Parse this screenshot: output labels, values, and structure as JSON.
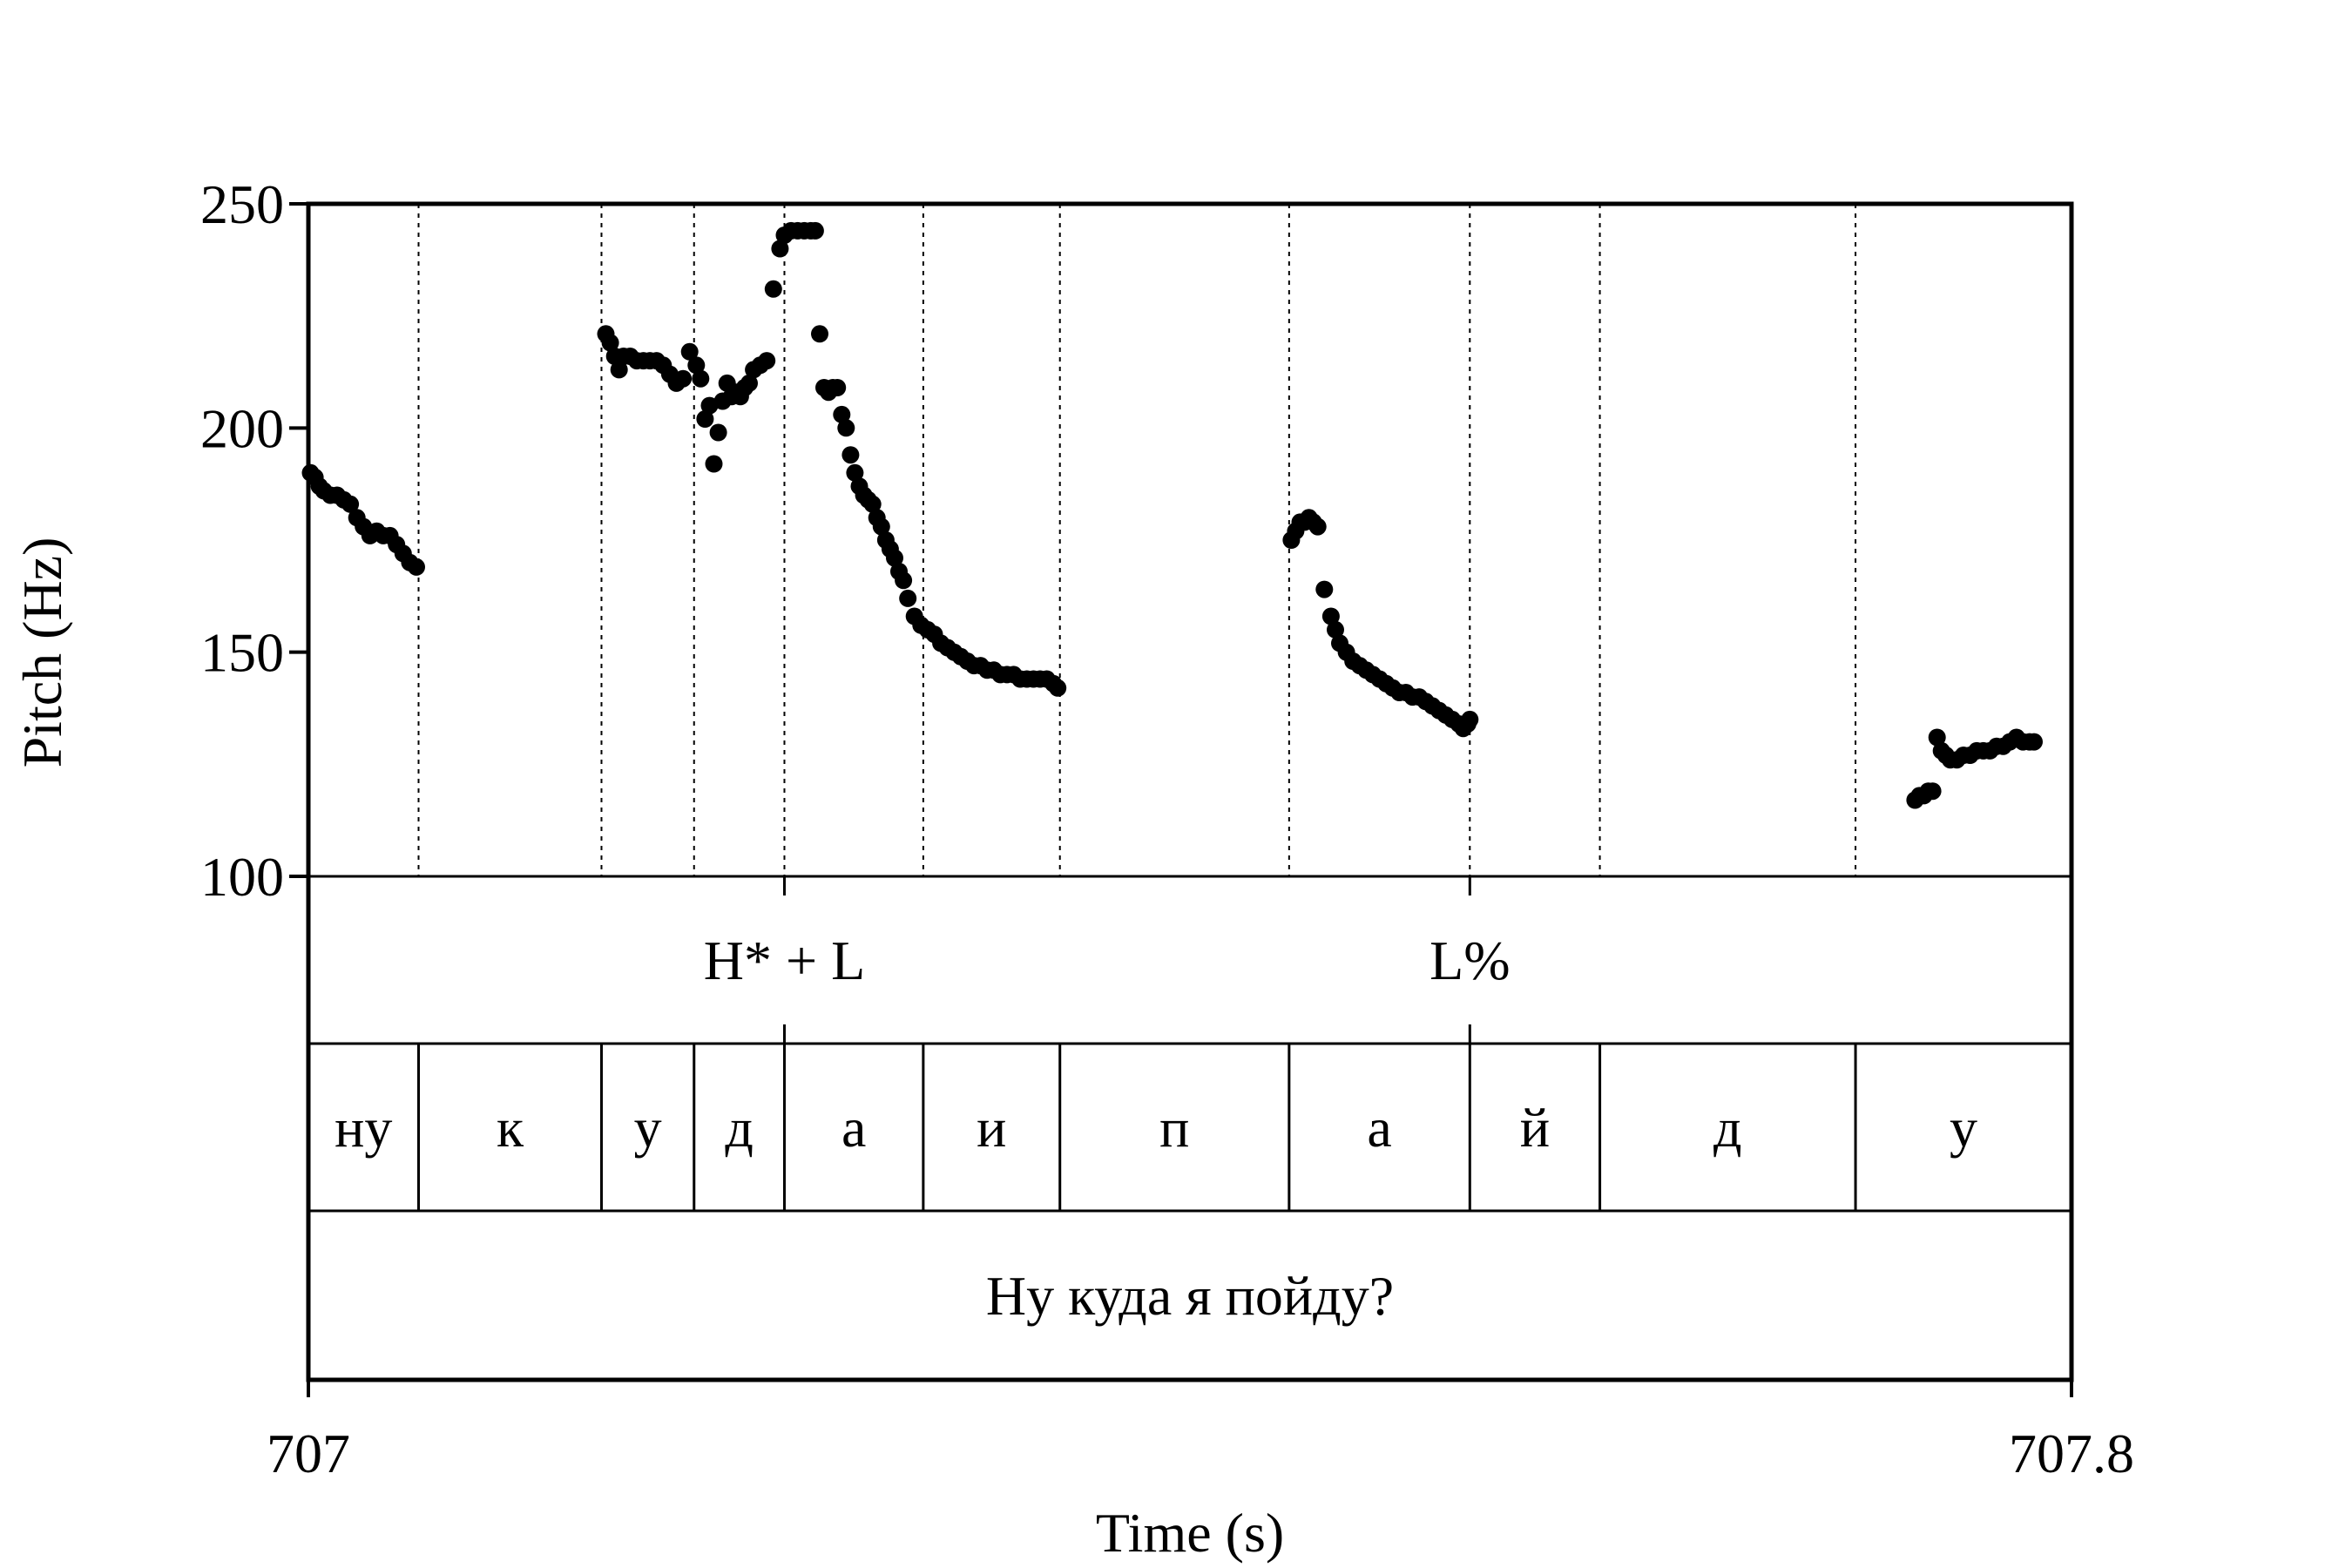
{
  "chart_data": {
    "type": "scatter",
    "title": "",
    "xlabel": "Time (s)",
    "ylabel": "Pitch (Hz)",
    "xlim": [
      707,
      707.8
    ],
    "ylim": [
      100,
      250
    ],
    "x_ticks": [
      "707",
      "707.8"
    ],
    "y_ticks": [
      "100",
      "150",
      "200",
      "250"
    ],
    "grid": false,
    "legend": "none",
    "point_color": "#000000",
    "boundaries": [
      707.05,
      707.133,
      707.175,
      707.216,
      707.279,
      707.341,
      707.445,
      707.527,
      707.586,
      707.702
    ],
    "tones": [
      {
        "label": "H* + L",
        "time": 707.216
      },
      {
        "label": "L%",
        "time": 707.527
      }
    ],
    "segments": [
      {
        "label": "ну",
        "start": 707.0,
        "end": 707.05
      },
      {
        "label": "к",
        "start": 707.05,
        "end": 707.133
      },
      {
        "label": "у",
        "start": 707.133,
        "end": 707.175
      },
      {
        "label": "д",
        "start": 707.175,
        "end": 707.216
      },
      {
        "label": "а",
        "start": 707.216,
        "end": 707.279
      },
      {
        "label": "и",
        "start": 707.279,
        "end": 707.341
      },
      {
        "label": "п",
        "start": 707.341,
        "end": 707.445
      },
      {
        "label": "а",
        "start": 707.445,
        "end": 707.527
      },
      {
        "label": "й",
        "start": 707.527,
        "end": 707.586
      },
      {
        "label": "д",
        "start": 707.586,
        "end": 707.702
      },
      {
        "label": "у",
        "start": 707.702,
        "end": 707.8
      }
    ],
    "sentence": "Ну куда я пойду?",
    "series": [
      {
        "x": [
          707.001,
          707.003,
          707.005,
          707.007,
          707.01,
          707.013,
          707.016,
          707.019,
          707.022,
          707.025,
          707.028,
          707.031,
          707.034,
          707.037,
          707.04,
          707.043,
          707.046,
          707.049
        ],
        "y": [
          190,
          189,
          187,
          186,
          185,
          185,
          184,
          183,
          180,
          178,
          176,
          177,
          176,
          176,
          174,
          172,
          170,
          169
        ]
      },
      {
        "x": [
          707.135,
          707.137,
          707.139,
          707.141,
          707.143,
          707.146,
          707.149,
          707.152,
          707.155,
          707.158,
          707.161,
          707.164,
          707.167,
          707.17,
          707.173,
          707.176,
          707.178,
          707.18,
          707.182,
          707.184,
          707.186,
          707.188,
          707.19,
          707.192,
          707.194,
          707.196,
          707.198,
          707.2,
          707.202,
          707.205,
          707.208,
          707.211,
          707.214,
          707.216
        ],
        "y": [
          221,
          219,
          216,
          213,
          216,
          216,
          215,
          215,
          215,
          215,
          214,
          212,
          210,
          211,
          217,
          214,
          211,
          202,
          205,
          192,
          199,
          206,
          210,
          207,
          208,
          207,
          209,
          210,
          213,
          214,
          215,
          231,
          240,
          243
        ]
      },
      {
        "x": [
          707.219,
          707.222,
          707.225,
          707.228,
          707.23,
          707.232,
          707.234,
          707.236,
          707.238,
          707.24,
          707.242,
          707.244,
          707.246,
          707.248,
          707.25,
          707.252,
          707.254,
          707.256,
          707.258,
          707.26,
          707.262,
          707.264,
          707.266,
          707.268,
          707.27,
          707.272,
          707.275,
          707.278,
          707.281,
          707.284,
          707.287,
          707.29,
          707.293,
          707.296,
          707.299,
          707.302,
          707.305,
          707.308,
          707.311,
          707.314,
          707.317,
          707.32,
          707.323,
          707.326,
          707.329,
          707.332,
          707.335,
          707.338,
          707.34
        ],
        "y": [
          244,
          244,
          244,
          244,
          244,
          221,
          209,
          208,
          209,
          209,
          203,
          200,
          194,
          190,
          187,
          185,
          184,
          183,
          180,
          178,
          175,
          173,
          171,
          168,
          166,
          162,
          158,
          156,
          155,
          154,
          152,
          151,
          150,
          149,
          148,
          147,
          147,
          146,
          146,
          145,
          145,
          145,
          144,
          144,
          144,
          144,
          144,
          143,
          142
        ]
      },
      {
        "x": [
          707.446,
          707.448,
          707.45,
          707.452,
          707.454,
          707.456,
          707.458,
          707.461,
          707.464,
          707.466,
          707.468,
          707.471,
          707.474,
          707.477,
          707.48,
          707.483,
          707.486,
          707.489,
          707.492,
          707.495,
          707.498,
          707.501,
          707.504,
          707.507,
          707.51,
          707.513,
          707.516,
          707.519,
          707.522,
          707.524,
          707.526,
          707.527
        ],
        "y": [
          175,
          177,
          179,
          179,
          180,
          179,
          178,
          164,
          158,
          155,
          152,
          150,
          148,
          147,
          146,
          145,
          144,
          143,
          142,
          141,
          141,
          140,
          140,
          139,
          138,
          137,
          136,
          135,
          134,
          133,
          134,
          135
        ]
      },
      {
        "x": [
          707.729,
          707.731,
          707.733,
          707.735,
          707.737,
          707.739,
          707.741,
          707.743,
          707.745,
          707.748,
          707.751,
          707.754,
          707.757,
          707.76,
          707.763,
          707.766,
          707.769,
          707.772,
          707.775,
          707.778,
          707.781,
          707.783
        ],
        "y": [
          117,
          118,
          118,
          119,
          119,
          131,
          128,
          127,
          126,
          126,
          127,
          127,
          128,
          128,
          128,
          129,
          129,
          130,
          131,
          130,
          130,
          130
        ]
      }
    ]
  }
}
